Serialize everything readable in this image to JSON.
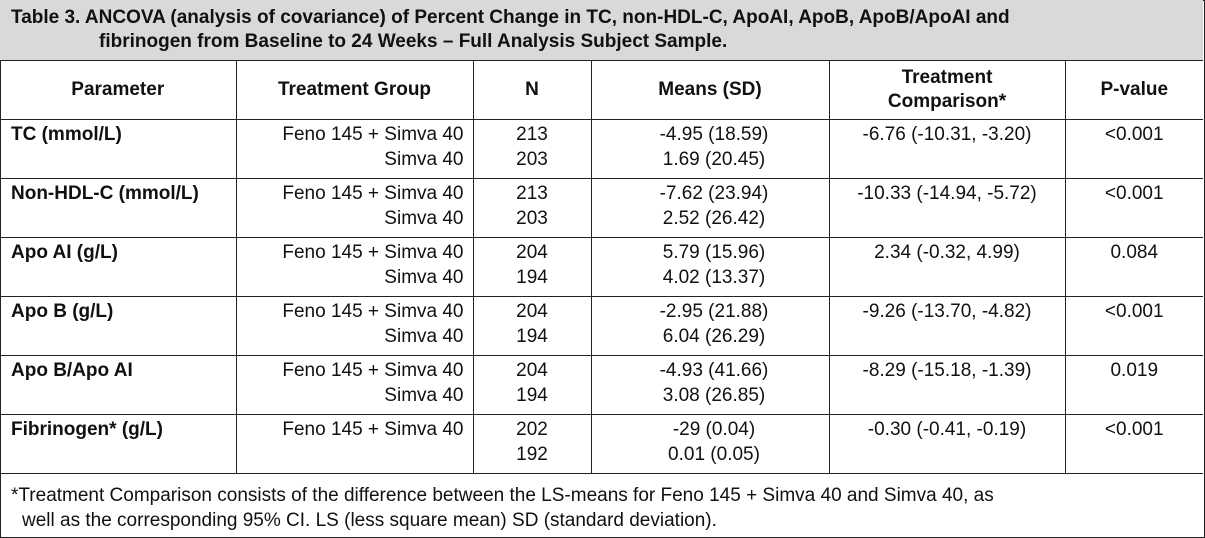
{
  "title": {
    "line1": "Table 3. ANCOVA (analysis of covariance) of Percent Change in TC, non-HDL-C, ApoAI, ApoB, ApoB/ApoAI and",
    "line2": "fibrinogen from Baseline to 24 Weeks – Full Analysis Subject Sample."
  },
  "headers": {
    "parameter": "Parameter",
    "treatment_group": "Treatment Group",
    "n": "N",
    "means": "Means (SD)",
    "comparison_line1": "Treatment",
    "comparison_line2": "Comparison*",
    "pvalue": "P-value"
  },
  "rows": [
    {
      "parameter": "TC (mmol/L)",
      "group1": "Feno 145 + Simva 40",
      "group2": "Simva 40",
      "n1": "213",
      "n2": "203",
      "mean1": "-4.95 (18.59)",
      "mean2": "1.69 (20.45)",
      "comparison": "-6.76 (-10.31, -3.20)",
      "pvalue": "<0.001"
    },
    {
      "parameter": "Non-HDL-C (mmol/L)",
      "group1": "Feno 145 + Simva 40",
      "group2": "Simva 40",
      "n1": "213",
      "n2": "203",
      "mean1": "-7.62 (23.94)",
      "mean2": "2.52 (26.42)",
      "comparison": "-10.33 (-14.94, -5.72)",
      "pvalue": "<0.001"
    },
    {
      "parameter": "Apo AI (g/L)",
      "group1": "Feno 145 + Simva 40",
      "group2": "Simva 40",
      "n1": "204",
      "n2": "194",
      "mean1": "5.79 (15.96)",
      "mean2": "4.02 (13.37)",
      "comparison": "2.34 (-0.32, 4.99)",
      "pvalue": "0.084"
    },
    {
      "parameter": "Apo B (g/L)",
      "group1": "Feno 145 + Simva 40",
      "group2": "Simva 40",
      "n1": "204",
      "n2": "194",
      "mean1": "-2.95 (21.88)",
      "mean2": "6.04 (26.29)",
      "comparison": "-9.26 (-13.70, -4.82)",
      "pvalue": "<0.001"
    },
    {
      "parameter": "Apo B/Apo AI",
      "group1": "Feno 145 + Simva 40",
      "group2": "Simva 40",
      "n1": "204",
      "n2": "194",
      "mean1": "-4.93 (41.66)",
      "mean2": "3.08 (26.85)",
      "comparison": "-8.29 (-15.18, -1.39)",
      "pvalue": "0.019"
    },
    {
      "parameter": "Fibrinogen* (g/L)",
      "group1": "Feno 145 + Simva 40",
      "group2": "",
      "n1": "202",
      "n2": "192",
      "mean1": "-29 (0.04)",
      "mean2": "0.01 (0.05)",
      "comparison": "-0.30 (-0.41, -0.19)",
      "pvalue": "<0.001"
    }
  ],
  "footnote": {
    "line1": "*Treatment Comparison consists of the difference between the LS-means for Feno 145 + Simva 40 and Simva 40, as",
    "line2": "well as the corresponding 95% CI. LS (less square mean) SD (standard deviation)."
  }
}
